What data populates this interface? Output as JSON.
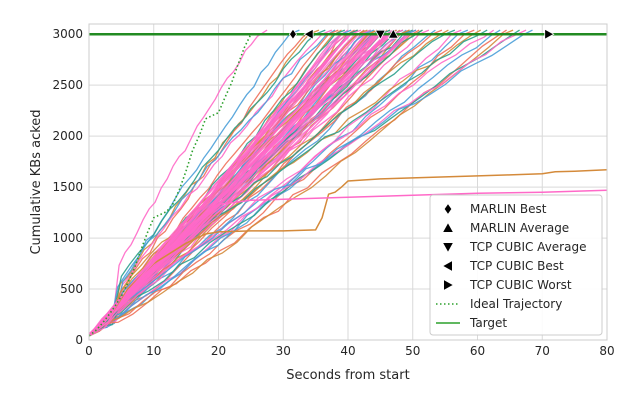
{
  "chart_data": {
    "type": "line",
    "title": "",
    "xlabel": "Seconds from start",
    "ylabel": "Cumulative KBs acked",
    "xlim": [
      0,
      80
    ],
    "ylim": [
      0,
      3100
    ],
    "x_ticks": [
      0,
      10,
      20,
      30,
      40,
      50,
      60,
      70,
      80
    ],
    "y_ticks": [
      0,
      500,
      1000,
      1500,
      2000,
      2500,
      3000
    ],
    "grid": true,
    "legend_placement": "lower-right",
    "target": {
      "name": "Target",
      "value": 3000,
      "color": "#2e8b2e"
    },
    "ideal_trajectory": {
      "name": "Ideal Trajectory",
      "color": "#2ca02c",
      "points": [
        [
          0,
          40
        ],
        [
          1,
          90
        ],
        [
          2,
          160
        ],
        [
          3,
          240
        ],
        [
          4,
          330
        ],
        [
          5,
          430
        ],
        [
          6,
          560
        ],
        [
          7,
          700
        ],
        [
          8,
          880
        ],
        [
          9,
          1050
        ],
        [
          10,
          1200
        ],
        [
          11,
          1230
        ],
        [
          12,
          1260
        ],
        [
          13,
          1340
        ],
        [
          14,
          1480
        ],
        [
          15,
          1660
        ],
        [
          16,
          1860
        ],
        [
          17,
          2000
        ],
        [
          18,
          2170
        ],
        [
          19,
          2200
        ],
        [
          20,
          2230
        ],
        [
          21,
          2380
        ],
        [
          22,
          2520
        ],
        [
          23,
          2700
        ],
        [
          24,
          2870
        ],
        [
          25,
          3000
        ]
      ]
    },
    "markers": [
      {
        "name": "MARLIN Best",
        "symbol": "diamond",
        "x": 31.5,
        "y": 3000
      },
      {
        "name": "MARLIN Average",
        "symbol": "triangle-up",
        "x": 47,
        "y": 3000
      },
      {
        "name": "TCP CUBIC Average",
        "symbol": "triangle-down",
        "x": 45,
        "y": 3000
      },
      {
        "name": "TCP CUBIC Best",
        "symbol": "triangle-left",
        "x": 34,
        "y": 3000
      },
      {
        "name": "TCP CUBIC Worst",
        "symbol": "triangle-right",
        "x": 71,
        "y": 3000
      }
    ],
    "legend": [
      {
        "name": "MARLIN Best",
        "kind": "diamond"
      },
      {
        "name": "MARLIN Average",
        "kind": "triangle-up"
      },
      {
        "name": "TCP CUBIC Average",
        "kind": "triangle-down"
      },
      {
        "name": "TCP CUBIC Best",
        "kind": "triangle-left"
      },
      {
        "name": "TCP CUBIC Worst",
        "kind": "triangle-right"
      },
      {
        "name": "Ideal Trajectory",
        "kind": "dotted-line",
        "color": "#2ca02c"
      },
      {
        "name": "Target",
        "kind": "solid-line",
        "color": "#2ca02c"
      }
    ],
    "series_colors": [
      "#ff69c8",
      "#4a9fd8",
      "#f0705a",
      "#d48a3a",
      "#2ca08c"
    ],
    "bundle": {
      "description_values": "many flow runs; finish times at 3000 KB",
      "finish_times": [
        26,
        31,
        33,
        34,
        35,
        36,
        36.5,
        37,
        37.5,
        38,
        38.5,
        39,
        39.5,
        40,
        40,
        40.5,
        41,
        41,
        41.5,
        42,
        42,
        42.5,
        43,
        43,
        43.5,
        44,
        44,
        44.5,
        45,
        45,
        45.5,
        46,
        46,
        46.5,
        47,
        47,
        47.5,
        48,
        48,
        48.5,
        49,
        49,
        49.5,
        50,
        50,
        51,
        52,
        53,
        54,
        55,
        56,
        57,
        58,
        59,
        60,
        61,
        62,
        63,
        64,
        65,
        66,
        67
      ]
    },
    "special_series": [
      {
        "color": "#d48a3a",
        "points": [
          [
            0,
            40
          ],
          [
            3,
            180
          ],
          [
            6,
            500
          ],
          [
            10,
            750
          ],
          [
            15,
            950
          ],
          [
            18,
            1040
          ],
          [
            20,
            1060
          ],
          [
            25,
            1070
          ],
          [
            30,
            1070
          ],
          [
            35,
            1080
          ],
          [
            36,
            1200
          ],
          [
            37,
            1430
          ],
          [
            38,
            1450
          ],
          [
            39,
            1500
          ],
          [
            40,
            1560
          ],
          [
            45,
            1580
          ],
          [
            50,
            1590
          ],
          [
            55,
            1600
          ],
          [
            60,
            1610
          ],
          [
            65,
            1620
          ],
          [
            70,
            1630
          ],
          [
            72,
            1650
          ],
          [
            75,
            1655
          ],
          [
            80,
            1670
          ]
        ]
      },
      {
        "color": "#ff69c8",
        "points": [
          [
            0,
            40
          ],
          [
            3,
            180
          ],
          [
            6,
            480
          ],
          [
            10,
            760
          ],
          [
            14,
            1000
          ],
          [
            17,
            1200
          ],
          [
            20,
            1330
          ],
          [
            25,
            1370
          ],
          [
            30,
            1380
          ],
          [
            35,
            1390
          ],
          [
            40,
            1400
          ],
          [
            45,
            1410
          ],
          [
            50,
            1420
          ],
          [
            55,
            1430
          ],
          [
            60,
            1440
          ],
          [
            65,
            1445
          ],
          [
            70,
            1450
          ],
          [
            75,
            1460
          ],
          [
            80,
            1470
          ]
        ]
      }
    ]
  }
}
